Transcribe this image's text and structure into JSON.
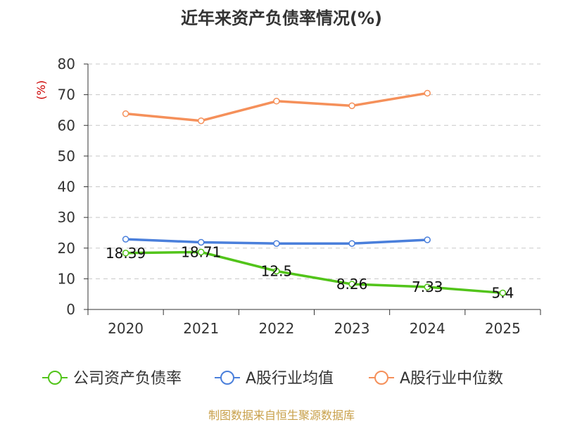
{
  "chart_data": {
    "type": "line",
    "title": "近年来资产负债率情况(%)",
    "ylabel": "(%)",
    "xlabel": "",
    "ylim": [
      0,
      80
    ],
    "yticks": [
      0,
      10,
      20,
      30,
      40,
      50,
      60,
      70,
      80
    ],
    "categories": [
      "2020",
      "2021",
      "2022",
      "2023",
      "2024",
      "2025"
    ],
    "grid": true,
    "legend_position": "bottom",
    "series": [
      {
        "name": "公司资产负债率",
        "color": "#52c41a",
        "values": [
          18.39,
          18.71,
          12.5,
          8.26,
          7.33,
          5.4
        ],
        "labels": [
          "18.39",
          "18.71",
          "12.5",
          "8.26",
          "7.33",
          "5.4"
        ]
      },
      {
        "name": "A股行业均值",
        "color": "#4a7fdb",
        "values": [
          22.9,
          21.9,
          21.5,
          21.5,
          22.7,
          null
        ]
      },
      {
        "name": "A股行业中位数",
        "color": "#f5905a",
        "values": [
          63.8,
          61.5,
          67.9,
          66.4,
          70.5,
          null
        ]
      }
    ]
  },
  "footer": {
    "source": "制图数据来自恒生聚源数据库"
  }
}
